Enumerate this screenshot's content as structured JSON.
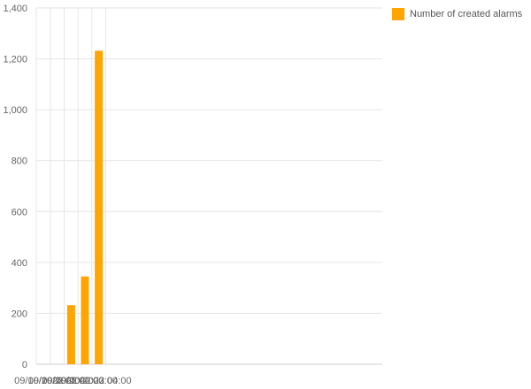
{
  "chart_data": {
    "type": "bar",
    "categories": [
      "09/10/2022 01:00",
      "09/10/2022 02:00",
      "09/10/2022 03:00",
      "09/10/2022 04:00"
    ],
    "series": [
      {
        "name": "Number of created alarms",
        "values": [
          0,
          232,
          345,
          1232
        ]
      }
    ],
    "ylim": [
      0,
      1400
    ],
    "yticks": [
      "0",
      "200",
      "400",
      "600",
      "800",
      "1,000",
      "1,200",
      "1,400"
    ],
    "xlabel": "",
    "ylabel": "",
    "grid": true,
    "legend": "top-right",
    "colors": {
      "bar": "#FFA500",
      "grid": "#e6e6e6",
      "axis": "#cccccc",
      "tick_text": "#666666"
    }
  }
}
